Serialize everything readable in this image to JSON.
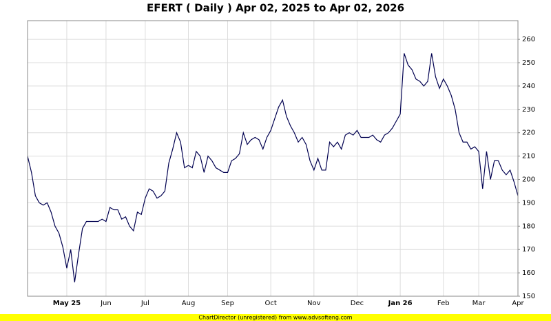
{
  "chart_data": {
    "type": "line",
    "title": "EFERT ( Daily ) Apr 02, 2025 to Apr 02, 2026",
    "footer": "ChartDirector (unregistered) from www.advsofteng.com",
    "categories": [
      null,
      null,
      null,
      null,
      null,
      null,
      null,
      null,
      null,
      null,
      "May 25",
      null,
      null,
      null,
      null,
      null,
      null,
      null,
      null,
      null,
      "Jun",
      null,
      null,
      null,
      null,
      null,
      null,
      null,
      null,
      null,
      "Jul",
      null,
      null,
      null,
      null,
      null,
      null,
      null,
      null,
      null,
      null,
      "Aug",
      null,
      null,
      null,
      null,
      null,
      null,
      null,
      null,
      null,
      "Sep",
      null,
      null,
      null,
      null,
      null,
      null,
      null,
      null,
      null,
      null,
      "Oct",
      null,
      null,
      null,
      null,
      null,
      null,
      null,
      null,
      null,
      null,
      "Nov",
      null,
      null,
      null,
      null,
      null,
      null,
      null,
      null,
      null,
      null,
      "Dec",
      null,
      null,
      null,
      null,
      null,
      null,
      null,
      null,
      null,
      null,
      "Jan 26",
      null,
      null,
      null,
      null,
      null,
      null,
      null,
      null,
      null,
      null,
      "Feb",
      null,
      null,
      null,
      null,
      null,
      null,
      null,
      null,
      "Mar",
      null,
      null,
      null,
      null,
      null,
      null,
      null,
      null,
      null,
      "Apr"
    ],
    "values": [
      210,
      203,
      193,
      190,
      189,
      190,
      186,
      180,
      177,
      171,
      162,
      170,
      156,
      168,
      179,
      182,
      182,
      182,
      182,
      183,
      182,
      188,
      187,
      187,
      183,
      184,
      180,
      178,
      186,
      185,
      192,
      196,
      195,
      192,
      193,
      195,
      207,
      213,
      220,
      216,
      205,
      206,
      205,
      212,
      210,
      203,
      210,
      208,
      205,
      204,
      203,
      203,
      208,
      209,
      211,
      220,
      215,
      217,
      218,
      217,
      213,
      218,
      221,
      226,
      231,
      234,
      227,
      223,
      220,
      216,
      218,
      215,
      208,
      204,
      209,
      204,
      204,
      216,
      214,
      216,
      213,
      219,
      220,
      219,
      221,
      218,
      218,
      218,
      219,
      217,
      216,
      219,
      220,
      222,
      225,
      228,
      254,
      249,
      247,
      243,
      242,
      240,
      242,
      254,
      244,
      239,
      243,
      240,
      236,
      230,
      220,
      216,
      216,
      213,
      214,
      212,
      196,
      212,
      200,
      208,
      208,
      204,
      202,
      204,
      199,
      193
    ],
    "color": "#000050",
    "ylim": [
      150,
      268
    ],
    "yticks": [
      150,
      160,
      170,
      180,
      190,
      200,
      210,
      220,
      230,
      240,
      250,
      260
    ],
    "grid": true
  }
}
